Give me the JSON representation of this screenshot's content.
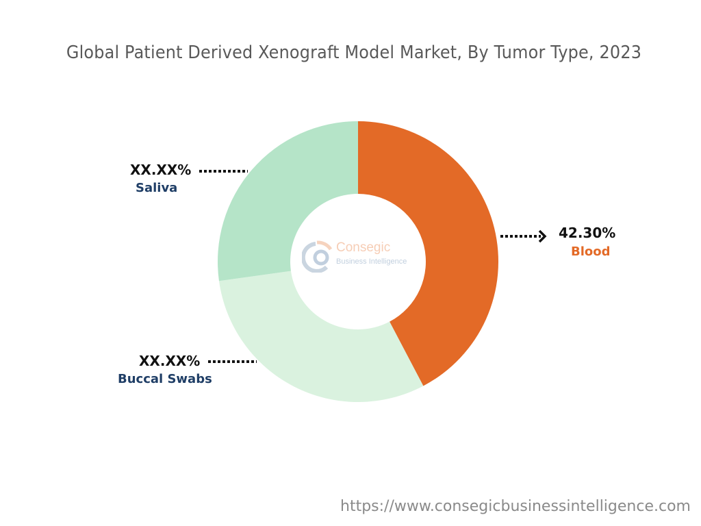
{
  "chart_data": {
    "type": "pie",
    "title": "Global Patient Derived Xenograft Model Market, By Tumor Type, 2023",
    "slices": [
      {
        "name": "Blood",
        "value": 42.3,
        "label": "42.30%",
        "color": "#E36A27",
        "name_color": "#E36A27"
      },
      {
        "name": "Buccal Swabs",
        "value": 30.5,
        "label": "XX.XX%",
        "color": "#DAF2DF",
        "name_color": "#1F3E66"
      },
      {
        "name": "Saliva",
        "value": 27.2,
        "label": "XX.XX%",
        "color": "#B5E4C8",
        "name_color": "#1F3E66"
      }
    ],
    "donut": true,
    "legend": "none"
  },
  "watermark": {
    "line1": "Consegic",
    "line2": "Business Intelligence"
  },
  "footer": {
    "url": "https://www.consegicbusinessintelligence.com"
  }
}
